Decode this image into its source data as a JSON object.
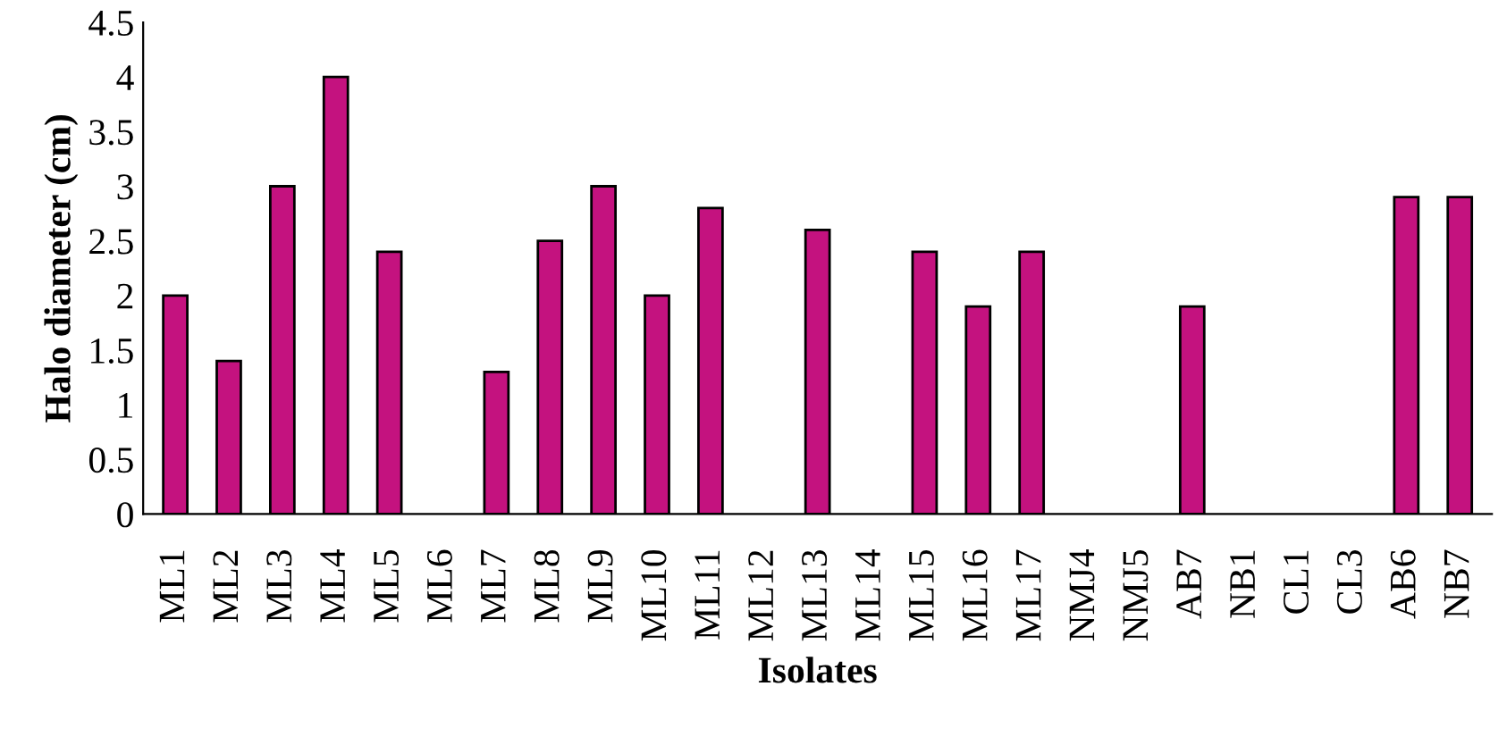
{
  "chart_data": {
    "type": "bar",
    "xlabel": "Isolates",
    "ylabel": "Halo diameter (cm)",
    "categories": [
      "ML1",
      "ML2",
      "ML3",
      "ML4",
      "ML5",
      "ML6",
      "ML7",
      "ML8",
      "ML9",
      "ML10",
      "ML11",
      "ML12",
      "ML13",
      "ML14",
      "ML15",
      "ML16",
      "ML17",
      "NMJ4",
      "NMJ5",
      "AB7",
      "NB1",
      "CL1",
      "CL3",
      "AB6",
      "NB7"
    ],
    "values": [
      2.0,
      1.4,
      3.0,
      4.0,
      2.4,
      0,
      1.3,
      2.5,
      3.0,
      2.0,
      2.8,
      0,
      2.6,
      0,
      2.4,
      1.9,
      2.4,
      0,
      0,
      1.9,
      0,
      0,
      0,
      2.9,
      2.9
    ],
    "color": "#c4127f",
    "ylim": [
      0,
      4.5
    ],
    "yticks": [
      0,
      0.5,
      1,
      1.5,
      2,
      2.5,
      3,
      3.5,
      4,
      4.5
    ],
    "grid": false,
    "legend": false
  }
}
